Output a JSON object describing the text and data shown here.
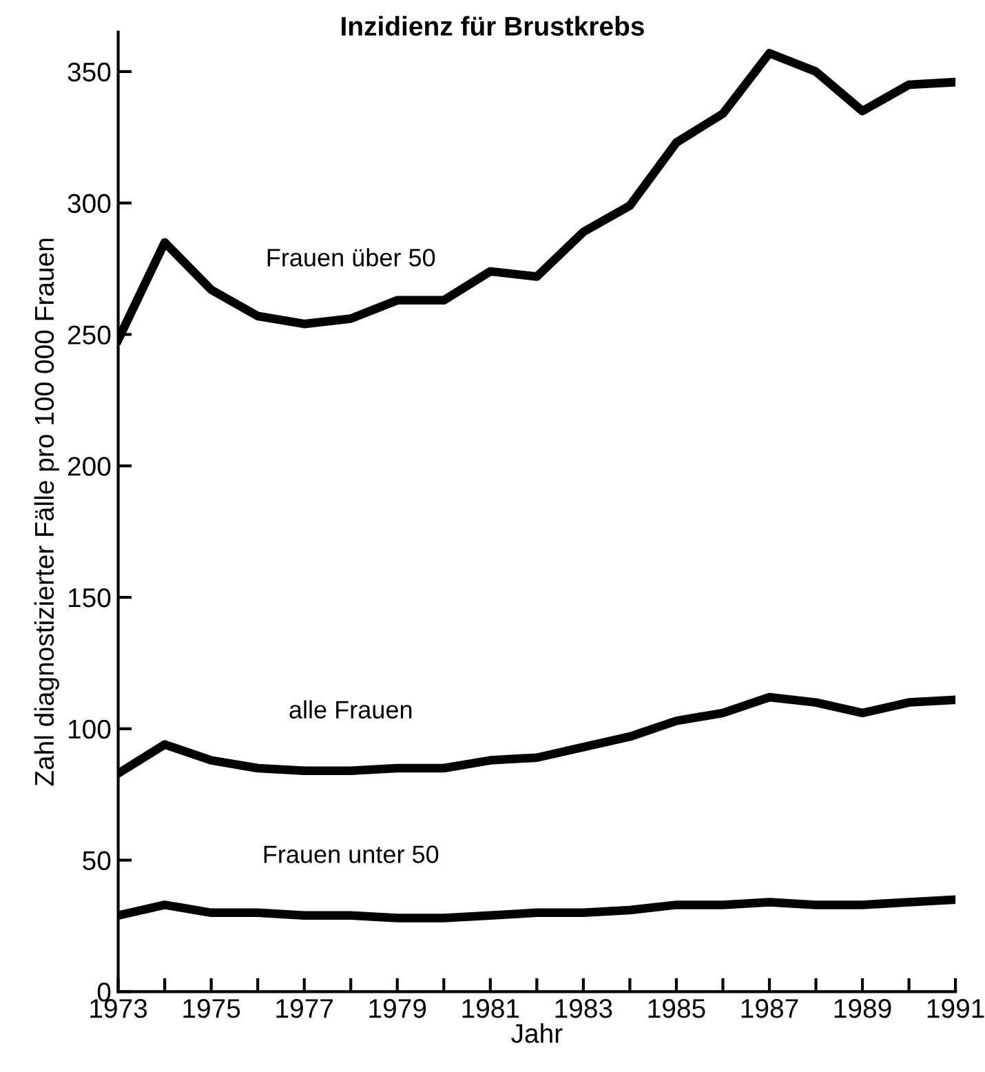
{
  "chart_data": {
    "type": "line",
    "title": "Inzidienz für Brustkrebs",
    "xlabel": "Jahr",
    "ylabel": "Zahl diagnostizierter Fälle pro 100 000 Frauen",
    "x": [
      1973,
      1974,
      1975,
      1976,
      1977,
      1978,
      1979,
      1980,
      1981,
      1982,
      1983,
      1984,
      1985,
      1986,
      1987,
      1988,
      1989,
      1990,
      1991
    ],
    "series": [
      {
        "name": "Frauen über 50",
        "color": "#000000",
        "values": [
          248,
          285,
          267,
          257,
          254,
          256,
          263,
          263,
          274,
          272,
          289,
          299,
          323,
          334,
          357,
          350,
          335,
          345,
          346
        ]
      },
      {
        "name": "alle Frauen",
        "color": "#000000",
        "values": [
          83,
          94,
          88,
          85,
          84,
          84,
          85,
          85,
          88,
          89,
          93,
          97,
          103,
          106,
          112,
          110,
          106,
          110,
          111
        ]
      },
      {
        "name": "Frauen unter 50",
        "color": "#000000",
        "values": [
          29,
          33,
          30,
          30,
          29,
          29,
          28,
          28,
          29,
          30,
          30,
          31,
          33,
          33,
          34,
          33,
          33,
          34,
          35
        ]
      }
    ],
    "xlim": [
      1973,
      1991
    ],
    "ylim": [
      0,
      365
    ],
    "xticks": [
      1973,
      {
        "value": 1974,
        "label": null
      },
      1975,
      {
        "value": 1976,
        "label": null
      },
      1977,
      {
        "value": 1978,
        "label": null
      },
      1979,
      {
        "value": 1980,
        "label": null
      },
      1981,
      {
        "value": 1982,
        "label": null
      },
      1983,
      {
        "value": 1984,
        "label": null
      },
      1985,
      {
        "value": 1986,
        "label": null
      },
      1987,
      {
        "value": 1988,
        "label": null
      },
      1989,
      {
        "value": 1990,
        "label": null
      },
      1991
    ],
    "yticks": [
      0,
      50,
      100,
      150,
      200,
      250,
      300,
      350
    ],
    "grid": false,
    "legend": false,
    "marker": "none",
    "line_style": "solid"
  }
}
